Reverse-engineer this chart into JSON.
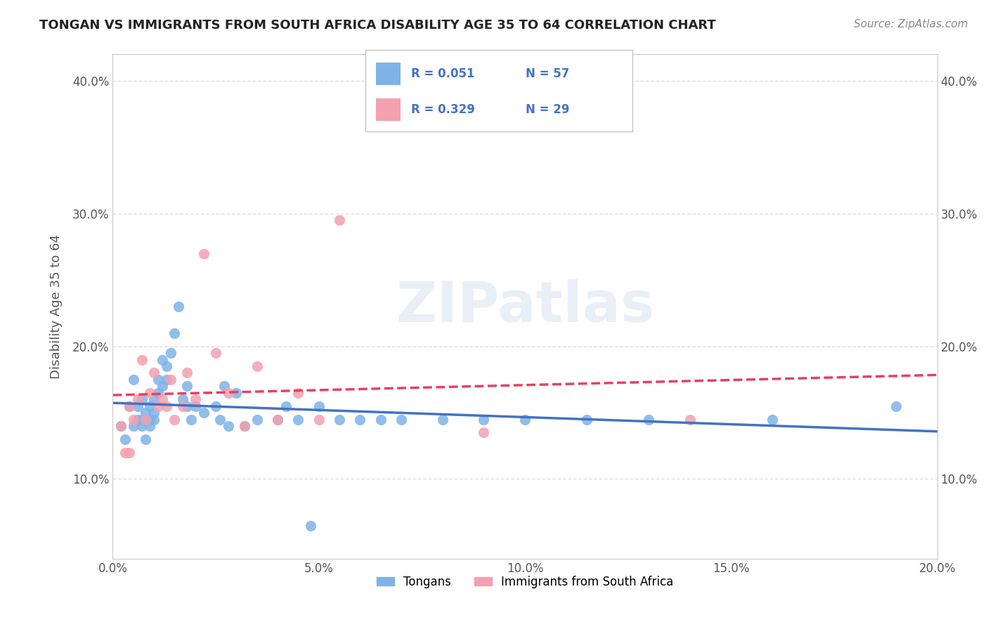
{
  "title": "TONGAN VS IMMIGRANTS FROM SOUTH AFRICA DISABILITY AGE 35 TO 64 CORRELATION CHART",
  "source": "Source: ZipAtlas.com",
  "xlim": [
    0.0,
    0.2
  ],
  "ylim": [
    0.04,
    0.42
  ],
  "legend_labels": [
    "Tongans",
    "Immigrants from South Africa"
  ],
  "r_tongan": 0.051,
  "n_tongan": 57,
  "r_sa": 0.329,
  "n_sa": 29,
  "color_tongan": "#7EB3E8",
  "color_sa": "#F4A0B0",
  "trendline_color_tongan": "#4472C4",
  "trendline_color_sa": "#E84060",
  "background_color": "#FFFFFF",
  "grid_color": "#E0E0E0",
  "tongan_x": [
    0.002,
    0.003,
    0.004,
    0.005,
    0.005,
    0.006,
    0.006,
    0.007,
    0.007,
    0.007,
    0.008,
    0.008,
    0.008,
    0.009,
    0.009,
    0.009,
    0.01,
    0.01,
    0.01,
    0.011,
    0.011,
    0.012,
    0.012,
    0.013,
    0.013,
    0.014,
    0.015,
    0.016,
    0.017,
    0.018,
    0.018,
    0.019,
    0.02,
    0.022,
    0.025,
    0.026,
    0.027,
    0.028,
    0.03,
    0.032,
    0.035,
    0.04,
    0.042,
    0.045,
    0.048,
    0.05,
    0.055,
    0.06,
    0.065,
    0.07,
    0.08,
    0.09,
    0.1,
    0.115,
    0.13,
    0.16,
    0.19
  ],
  "tongan_y": [
    0.14,
    0.13,
    0.155,
    0.14,
    0.175,
    0.145,
    0.155,
    0.16,
    0.145,
    0.14,
    0.15,
    0.145,
    0.13,
    0.155,
    0.145,
    0.14,
    0.16,
    0.15,
    0.145,
    0.175,
    0.165,
    0.19,
    0.17,
    0.175,
    0.185,
    0.195,
    0.21,
    0.23,
    0.16,
    0.155,
    0.17,
    0.145,
    0.155,
    0.15,
    0.155,
    0.145,
    0.17,
    0.14,
    0.165,
    0.14,
    0.145,
    0.145,
    0.155,
    0.145,
    0.065,
    0.155,
    0.145,
    0.145,
    0.145,
    0.145,
    0.145,
    0.145,
    0.145,
    0.145,
    0.145,
    0.145,
    0.155
  ],
  "sa_x": [
    0.002,
    0.003,
    0.004,
    0.004,
    0.005,
    0.006,
    0.007,
    0.008,
    0.009,
    0.01,
    0.011,
    0.012,
    0.013,
    0.014,
    0.015,
    0.017,
    0.018,
    0.02,
    0.022,
    0.025,
    0.028,
    0.032,
    0.035,
    0.04,
    0.045,
    0.05,
    0.055,
    0.09,
    0.14
  ],
  "sa_y": [
    0.14,
    0.12,
    0.155,
    0.12,
    0.145,
    0.16,
    0.19,
    0.145,
    0.165,
    0.18,
    0.155,
    0.16,
    0.155,
    0.175,
    0.145,
    0.155,
    0.18,
    0.16,
    0.27,
    0.195,
    0.165,
    0.14,
    0.185,
    0.145,
    0.165,
    0.145,
    0.295,
    0.135,
    0.145
  ]
}
